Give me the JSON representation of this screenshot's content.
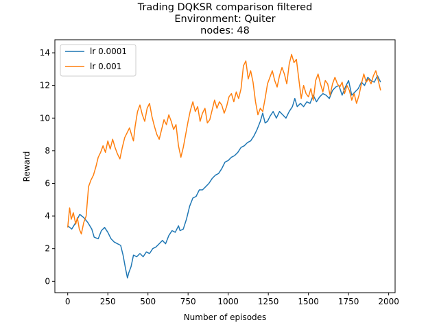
{
  "chart_data": {
    "type": "line",
    "title": "Trading DQKSR comparison filtered",
    "subtitle_lines": [
      "Environment: Quiter",
      "nodes: 48"
    ],
    "xlabel": "Number of episodes",
    "ylabel": "Reward",
    "xlim": [
      -80,
      2040
    ],
    "ylim": [
      -0.7,
      14.8
    ],
    "xticks": [
      0,
      250,
      500,
      750,
      1000,
      1250,
      1500,
      1750,
      2000
    ],
    "yticks": [
      0,
      2,
      4,
      6,
      8,
      10,
      12,
      14
    ],
    "grid": false,
    "legend_position": "top-left",
    "series": [
      {
        "name": "lr 0.0001",
        "color": "#1f77b4",
        "points": [
          [
            0,
            3.4
          ],
          [
            25,
            3.2
          ],
          [
            50,
            3.6
          ],
          [
            75,
            4.1
          ],
          [
            100,
            3.9
          ],
          [
            125,
            3.6
          ],
          [
            150,
            3.2
          ],
          [
            165,
            2.7
          ],
          [
            190,
            2.6
          ],
          [
            210,
            3.1
          ],
          [
            230,
            3.3
          ],
          [
            250,
            3.0
          ],
          [
            270,
            2.6
          ],
          [
            290,
            2.4
          ],
          [
            310,
            2.3
          ],
          [
            330,
            2.2
          ],
          [
            345,
            1.6
          ],
          [
            360,
            0.8
          ],
          [
            372,
            0.2
          ],
          [
            380,
            0.5
          ],
          [
            395,
            0.9
          ],
          [
            410,
            1.6
          ],
          [
            430,
            1.5
          ],
          [
            450,
            1.7
          ],
          [
            470,
            1.5
          ],
          [
            490,
            1.8
          ],
          [
            510,
            1.7
          ],
          [
            530,
            2.0
          ],
          [
            550,
            2.1
          ],
          [
            570,
            2.3
          ],
          [
            590,
            2.5
          ],
          [
            610,
            2.3
          ],
          [
            630,
            2.8
          ],
          [
            650,
            3.1
          ],
          [
            670,
            3.0
          ],
          [
            690,
            3.4
          ],
          [
            700,
            3.1
          ],
          [
            720,
            3.2
          ],
          [
            740,
            3.8
          ],
          [
            760,
            4.6
          ],
          [
            780,
            5.1
          ],
          [
            800,
            5.2
          ],
          [
            820,
            5.6
          ],
          [
            840,
            5.6
          ],
          [
            860,
            5.8
          ],
          [
            880,
            6.0
          ],
          [
            900,
            6.3
          ],
          [
            920,
            6.5
          ],
          [
            940,
            6.6
          ],
          [
            960,
            6.9
          ],
          [
            980,
            7.3
          ],
          [
            1000,
            7.4
          ],
          [
            1020,
            7.6
          ],
          [
            1040,
            7.7
          ],
          [
            1060,
            7.9
          ],
          [
            1080,
            8.2
          ],
          [
            1100,
            8.3
          ],
          [
            1120,
            8.5
          ],
          [
            1140,
            8.6
          ],
          [
            1160,
            8.9
          ],
          [
            1180,
            9.3
          ],
          [
            1200,
            9.8
          ],
          [
            1215,
            10.3
          ],
          [
            1230,
            9.7
          ],
          [
            1245,
            9.8
          ],
          [
            1260,
            10.1
          ],
          [
            1280,
            10.4
          ],
          [
            1300,
            10.0
          ],
          [
            1320,
            10.4
          ],
          [
            1340,
            10.2
          ],
          [
            1360,
            10.0
          ],
          [
            1380,
            10.4
          ],
          [
            1400,
            10.7
          ],
          [
            1415,
            11.2
          ],
          [
            1430,
            10.7
          ],
          [
            1450,
            10.9
          ],
          [
            1470,
            10.7
          ],
          [
            1490,
            11.0
          ],
          [
            1510,
            10.9
          ],
          [
            1530,
            11.4
          ],
          [
            1550,
            11.0
          ],
          [
            1570,
            11.3
          ],
          [
            1590,
            11.5
          ],
          [
            1610,
            11.4
          ],
          [
            1630,
            11.2
          ],
          [
            1650,
            11.7
          ],
          [
            1670,
            11.9
          ],
          [
            1690,
            12.0
          ],
          [
            1710,
            11.4
          ],
          [
            1730,
            11.9
          ],
          [
            1750,
            12.3
          ],
          [
            1770,
            11.4
          ],
          [
            1790,
            11.6
          ],
          [
            1810,
            11.8
          ],
          [
            1830,
            12.2
          ],
          [
            1850,
            12.0
          ],
          [
            1870,
            12.5
          ],
          [
            1890,
            12.3
          ],
          [
            1910,
            12.2
          ],
          [
            1930,
            12.6
          ],
          [
            1950,
            12.2
          ]
        ]
      },
      {
        "name": "lr 0.001",
        "color": "#ff7f0e",
        "points": [
          [
            0,
            3.3
          ],
          [
            12,
            4.5
          ],
          [
            22,
            3.8
          ],
          [
            35,
            4.2
          ],
          [
            50,
            3.5
          ],
          [
            60,
            3.9
          ],
          [
            72,
            3.2
          ],
          [
            85,
            2.9
          ],
          [
            100,
            3.6
          ],
          [
            115,
            4.0
          ],
          [
            130,
            5.8
          ],
          [
            145,
            6.2
          ],
          [
            160,
            6.5
          ],
          [
            175,
            7.0
          ],
          [
            190,
            7.6
          ],
          [
            205,
            7.9
          ],
          [
            220,
            8.3
          ],
          [
            235,
            7.9
          ],
          [
            250,
            8.6
          ],
          [
            265,
            8.1
          ],
          [
            280,
            8.7
          ],
          [
            295,
            8.2
          ],
          [
            310,
            7.8
          ],
          [
            325,
            7.5
          ],
          [
            340,
            8.2
          ],
          [
            355,
            8.8
          ],
          [
            370,
            9.1
          ],
          [
            385,
            9.4
          ],
          [
            400,
            8.9
          ],
          [
            410,
            8.6
          ],
          [
            420,
            9.5
          ],
          [
            435,
            10.4
          ],
          [
            450,
            10.8
          ],
          [
            465,
            10.2
          ],
          [
            480,
            9.8
          ],
          [
            495,
            10.6
          ],
          [
            510,
            10.9
          ],
          [
            525,
            10.1
          ],
          [
            540,
            9.5
          ],
          [
            555,
            9.0
          ],
          [
            570,
            8.7
          ],
          [
            585,
            9.3
          ],
          [
            600,
            9.9
          ],
          [
            615,
            9.6
          ],
          [
            630,
            10.2
          ],
          [
            645,
            9.8
          ],
          [
            660,
            9.3
          ],
          [
            675,
            9.6
          ],
          [
            690,
            8.3
          ],
          [
            705,
            7.6
          ],
          [
            720,
            8.2
          ],
          [
            735,
            9.0
          ],
          [
            750,
            9.8
          ],
          [
            765,
            10.5
          ],
          [
            780,
            11.0
          ],
          [
            795,
            10.4
          ],
          [
            810,
            10.7
          ],
          [
            825,
            9.8
          ],
          [
            840,
            10.3
          ],
          [
            855,
            10.6
          ],
          [
            870,
            9.7
          ],
          [
            885,
            9.9
          ],
          [
            900,
            10.5
          ],
          [
            915,
            11.1
          ],
          [
            930,
            10.6
          ],
          [
            945,
            11.0
          ],
          [
            960,
            10.8
          ],
          [
            975,
            10.3
          ],
          [
            990,
            10.7
          ],
          [
            1005,
            11.3
          ],
          [
            1020,
            11.5
          ],
          [
            1035,
            11.0
          ],
          [
            1050,
            11.6
          ],
          [
            1065,
            11.2
          ],
          [
            1080,
            11.8
          ],
          [
            1095,
            13.2
          ],
          [
            1110,
            13.5
          ],
          [
            1125,
            12.4
          ],
          [
            1140,
            12.9
          ],
          [
            1155,
            12.2
          ],
          [
            1170,
            11.0
          ],
          [
            1185,
            10.2
          ],
          [
            1200,
            10.6
          ],
          [
            1215,
            10.4
          ],
          [
            1230,
            11.2
          ],
          [
            1245,
            12.1
          ],
          [
            1260,
            12.5
          ],
          [
            1275,
            12.9
          ],
          [
            1290,
            12.3
          ],
          [
            1305,
            11.9
          ],
          [
            1320,
            12.6
          ],
          [
            1335,
            13.1
          ],
          [
            1350,
            12.7
          ],
          [
            1365,
            12.1
          ],
          [
            1380,
            13.3
          ],
          [
            1395,
            13.9
          ],
          [
            1410,
            13.4
          ],
          [
            1425,
            13.6
          ],
          [
            1440,
            12.4
          ],
          [
            1455,
            11.2
          ],
          [
            1470,
            12.0
          ],
          [
            1485,
            11.5
          ],
          [
            1500,
            11.3
          ],
          [
            1515,
            11.8
          ],
          [
            1530,
            11.1
          ],
          [
            1545,
            12.3
          ],
          [
            1560,
            12.7
          ],
          [
            1575,
            12.1
          ],
          [
            1590,
            11.6
          ],
          [
            1605,
            12.3
          ],
          [
            1620,
            12.1
          ],
          [
            1635,
            11.4
          ],
          [
            1650,
            12.1
          ],
          [
            1665,
            12.5
          ],
          [
            1680,
            12.1
          ],
          [
            1695,
            11.9
          ],
          [
            1710,
            12.2
          ],
          [
            1725,
            11.5
          ],
          [
            1740,
            12.0
          ],
          [
            1755,
            11.7
          ],
          [
            1770,
            11.1
          ],
          [
            1785,
            11.5
          ],
          [
            1800,
            10.9
          ],
          [
            1815,
            11.4
          ],
          [
            1830,
            12.1
          ],
          [
            1845,
            12.7
          ],
          [
            1860,
            12.2
          ],
          [
            1875,
            12.4
          ],
          [
            1890,
            12.1
          ],
          [
            1905,
            12.6
          ],
          [
            1920,
            12.9
          ],
          [
            1935,
            12.3
          ],
          [
            1950,
            11.7
          ]
        ]
      }
    ]
  }
}
